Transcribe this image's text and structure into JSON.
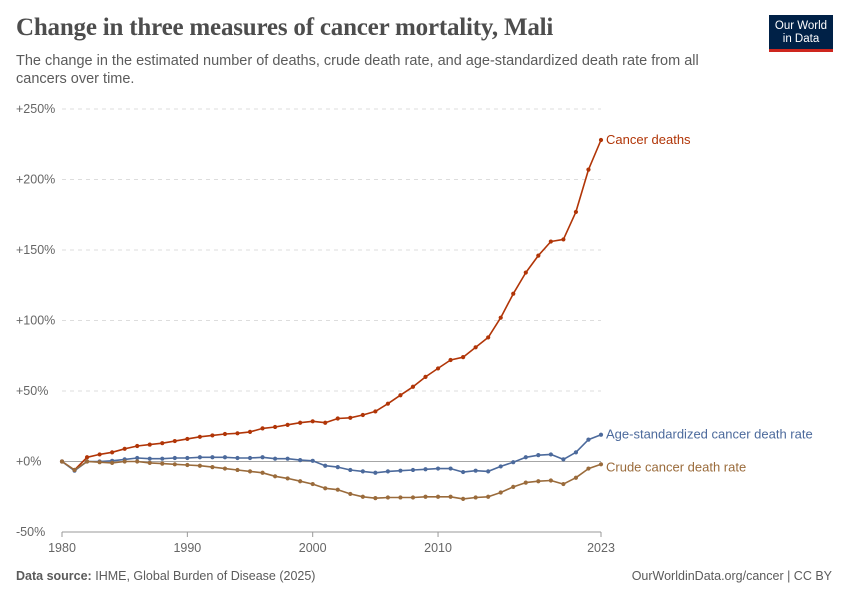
{
  "header": {
    "title": "Change in three measures of cancer mortality, Mali",
    "subtitle": "The change in the estimated number of deaths, crude death rate, and age-standardized death rate from all cancers over time."
  },
  "logo": {
    "line1": "Our World",
    "line2": "in Data",
    "bg_color": "#002147",
    "accent_color": "#ce261e"
  },
  "footer": {
    "source_label": "Data source:",
    "source_text": "IHME, Global Burden of Disease (2025)",
    "url_text": "OurWorldinData.org/cancer | CC BY"
  },
  "chart_data": {
    "type": "line",
    "x_ticks": [
      1980,
      1990,
      2000,
      2010,
      2023
    ],
    "x_tick_labels": [
      "1980",
      "1990",
      "2000",
      "2010",
      "2023"
    ],
    "y_ticks": [
      -50,
      0,
      50,
      100,
      150,
      200,
      250
    ],
    "y_tick_labels": [
      "-50%",
      "+0%",
      "+50%",
      "+100%",
      "+150%",
      "+200%",
      "+250%"
    ],
    "xlim": [
      1980,
      2023
    ],
    "ylim": [
      -50,
      250
    ],
    "grid": "horizontal dashed",
    "x": [
      1980,
      1981,
      1982,
      1983,
      1984,
      1985,
      1986,
      1987,
      1988,
      1989,
      1990,
      1991,
      1992,
      1993,
      1994,
      1995,
      1996,
      1997,
      1998,
      1999,
      2000,
      2001,
      2002,
      2003,
      2004,
      2005,
      2006,
      2007,
      2008,
      2009,
      2010,
      2011,
      2012,
      2013,
      2014,
      2015,
      2016,
      2017,
      2018,
      2019,
      2020,
      2021,
      2022,
      2023
    ],
    "series": [
      {
        "name": "Cancer deaths",
        "color": "#b13507",
        "values": [
          0,
          -6,
          3,
          5,
          6.5,
          9,
          11,
          12,
          13,
          14.5,
          16,
          17.5,
          18.5,
          19.5,
          20,
          21,
          23.5,
          24.5,
          26,
          27.5,
          28.5,
          27.5,
          30.5,
          31,
          33,
          35.5,
          41,
          47,
          53,
          60,
          66,
          72,
          74,
          81,
          88,
          102,
          119,
          134,
          146,
          156,
          157.5,
          177,
          207,
          228
        ]
      },
      {
        "name": "Age-standardized cancer death rate",
        "color": "#4c6a9c",
        "values": [
          0,
          -6.5,
          0,
          0,
          0.5,
          1.5,
          2.5,
          2,
          2,
          2.5,
          2.5,
          3,
          3,
          3,
          2.5,
          2.5,
          3,
          2,
          2,
          1,
          0.5,
          -3,
          -4,
          -6,
          -7,
          -8,
          -7,
          -6.5,
          -6,
          -5.5,
          -5,
          -5,
          -7.5,
          -6.5,
          -7,
          -3.5,
          -0.5,
          3,
          4.5,
          5,
          1.5,
          6.5,
          15.5,
          19
        ]
      },
      {
        "name": "Crude cancer death rate",
        "color": "#9a6b3b",
        "values": [
          0,
          -6,
          0,
          -0.5,
          -1,
          0,
          0,
          -1,
          -1.5,
          -2,
          -2.5,
          -3,
          -4,
          -5,
          -6,
          -7,
          -8,
          -10.5,
          -12,
          -14,
          -16,
          -19,
          -20,
          -23,
          -25,
          -26,
          -25.5,
          -25.5,
          -25.5,
          -25,
          -25,
          -25,
          -26.5,
          -25.5,
          -25,
          -22,
          -18,
          -15,
          -14,
          -13.5,
          -16,
          -11.5,
          -5,
          -2
        ]
      }
    ]
  }
}
